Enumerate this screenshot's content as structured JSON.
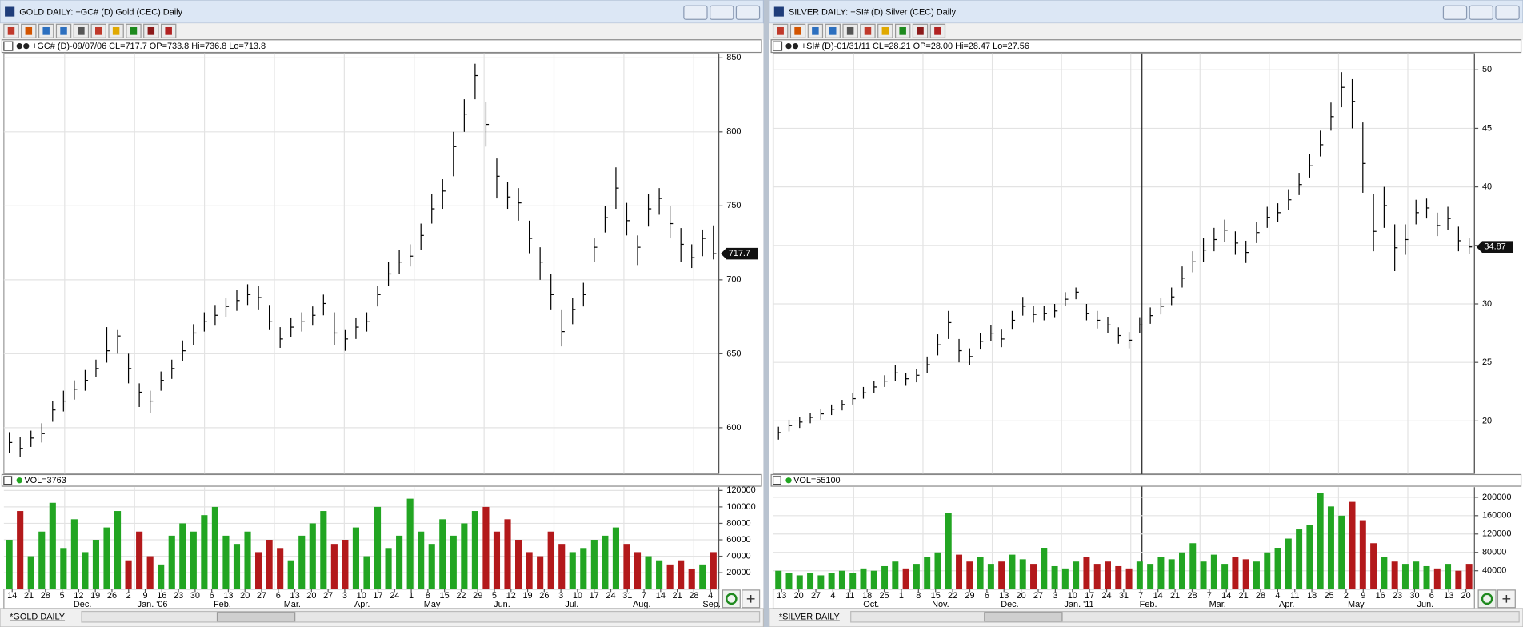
{
  "chart_data": [
    {
      "type": "ohlc",
      "window_title": "GOLD DAILY: +GC# (D) Gold (CEC) Daily",
      "header": "+GC# (D)-09/07/06 CL=717.7 OP=733.8 Hi=736.8 Lo=713.8",
      "volume_label": "VOL=3763",
      "tab": "*GOLD DAILY",
      "bar_color": "#000000",
      "up_color": "#22a522",
      "down_color": "#b3191b",
      "ylim": [
        569,
        853
      ],
      "yticks": [
        600,
        650,
        700,
        750,
        800,
        850
      ],
      "volume_ylim": [
        0,
        124000
      ],
      "volume_yticks": [
        20000,
        40000,
        60000,
        80000,
        100000,
        120000
      ],
      "grid": true,
      "close": [
        590,
        586,
        593,
        596,
        612,
        618,
        626,
        632,
        640,
        652,
        662,
        640,
        624,
        618,
        632,
        640,
        652,
        664,
        672,
        676,
        682,
        686,
        690,
        688,
        672,
        660,
        668,
        672,
        676,
        684,
        664,
        660,
        668,
        672,
        690,
        704,
        712,
        716,
        730,
        748,
        760,
        790,
        812,
        838,
        805,
        770,
        756,
        752,
        728,
        712,
        690,
        665,
        680,
        690,
        722,
        742,
        762,
        740,
        722,
        748,
        755,
        738,
        724,
        715,
        728,
        717.7
      ],
      "high": [
        597,
        594,
        598,
        603,
        618,
        625,
        632,
        639,
        646,
        668,
        666,
        650,
        630,
        625,
        638,
        646,
        659,
        670,
        678,
        683,
        688,
        693,
        697,
        696,
        683,
        668,
        674,
        678,
        682,
        690,
        678,
        666,
        674,
        678,
        696,
        712,
        720,
        724,
        738,
        758,
        768,
        800,
        822,
        846,
        820,
        782,
        766,
        762,
        740,
        722,
        704,
        680,
        688,
        698,
        728,
        750,
        776,
        752,
        730,
        758,
        762,
        750,
        735,
        724,
        734,
        736.8
      ],
      "low": [
        583,
        580,
        587,
        590,
        604,
        611,
        619,
        625,
        634,
        644,
        650,
        630,
        614,
        610,
        625,
        633,
        645,
        656,
        665,
        669,
        675,
        679,
        683,
        680,
        666,
        654,
        661,
        665,
        669,
        676,
        656,
        652,
        660,
        665,
        682,
        696,
        704,
        709,
        720,
        738,
        748,
        770,
        800,
        822,
        790,
        755,
        748,
        740,
        718,
        700,
        680,
        655,
        670,
        682,
        712,
        732,
        748,
        730,
        710,
        736,
        744,
        728,
        712,
        708,
        716,
        713.8
      ],
      "volume": [
        60000,
        95000,
        40000,
        70000,
        105000,
        50000,
        85000,
        45000,
        60000,
        75000,
        95000,
        35000,
        70000,
        40000,
        30000,
        65000,
        80000,
        70000,
        90000,
        100000,
        65000,
        55000,
        70000,
        45000,
        60000,
        50000,
        35000,
        65000,
        80000,
        95000,
        55000,
        60000,
        75000,
        40000,
        100000,
        50000,
        65000,
        110000,
        70000,
        55000,
        85000,
        65000,
        80000,
        95000,
        100000,
        70000,
        85000,
        60000,
        45000,
        40000,
        70000,
        55000,
        45000,
        50000,
        60000,
        65000,
        75000,
        55000,
        45000,
        40000,
        35000,
        30000,
        35000,
        25000,
        30000,
        45000
      ],
      "day_labels": [
        "14",
        "21",
        "28",
        "5",
        "12",
        "19",
        "26",
        "2",
        "9",
        "16",
        "23",
        "30",
        "6",
        "13",
        "20",
        "27",
        "6",
        "13",
        "20",
        "27",
        "3",
        "10",
        "17",
        "24",
        "1",
        "8",
        "15",
        "22",
        "29",
        "5",
        "12",
        "19",
        "26",
        "3",
        "10",
        "17",
        "24",
        "31",
        "7",
        "14",
        "21",
        "28",
        "4"
      ],
      "month_labels": [
        "Dec.",
        "Jan. '06",
        "Feb.",
        "Mar.",
        "Apr.",
        "May",
        "Jun.",
        "Jul.",
        "Aug.",
        "Sep."
      ]
    },
    {
      "type": "ohlc",
      "window_title": "SILVER DAILY: +SI# (D) Silver (CEC) Daily",
      "header": "+SI# (D)-01/31/11 CL=28.21 OP=28.00 Hi=28.47 Lo=27.56",
      "volume_label": "VOL=55100",
      "tab": "*SILVER DAILY",
      "bar_color": "#000000",
      "up_color": "#22a522",
      "down_color": "#b3191b",
      "ylim": [
        15.5,
        51.4
      ],
      "yticks": [
        20,
        25,
        30,
        35,
        40,
        45,
        50
      ],
      "volume_ylim": [
        0,
        222000
      ],
      "volume_yticks": [
        40000,
        80000,
        120000,
        160000,
        200000
      ],
      "grid": true,
      "close": [
        19.0,
        19.6,
        19.9,
        20.3,
        20.6,
        21.0,
        21.4,
        21.9,
        22.4,
        22.9,
        23.4,
        24.1,
        23.6,
        23.9,
        24.8,
        26.5,
        28.4,
        26.0,
        25.5,
        26.8,
        27.5,
        27.0,
        28.6,
        29.8,
        29.1,
        29.2,
        29.4,
        30.4,
        31.0,
        29.2,
        28.6,
        28.2,
        27.3,
        26.9,
        28.2,
        29.0,
        29.8,
        30.6,
        32.2,
        33.6,
        34.6,
        35.5,
        36.3,
        35.2,
        34.4,
        36.1,
        37.4,
        37.8,
        38.9,
        40.2,
        41.8,
        43.6,
        46.0,
        48.5,
        47.3,
        42.0,
        36.2,
        38.4,
        34.8,
        35.5,
        37.8,
        38.2,
        36.7,
        37.3,
        35.4,
        34.87
      ],
      "high": [
        19.5,
        20.1,
        20.3,
        20.7,
        21.0,
        21.4,
        21.8,
        22.4,
        22.9,
        23.4,
        23.9,
        24.8,
        24.1,
        24.4,
        25.5,
        27.4,
        29.4,
        27.0,
        26.2,
        27.5,
        28.2,
        27.8,
        29.4,
        30.6,
        29.8,
        29.8,
        30.0,
        31.0,
        31.4,
        30.0,
        29.4,
        28.9,
        28.0,
        27.6,
        28.8,
        29.7,
        30.5,
        31.4,
        33.2,
        34.5,
        35.6,
        36.5,
        37.2,
        36.2,
        35.4,
        37.0,
        38.3,
        38.6,
        39.8,
        41.2,
        42.8,
        44.8,
        47.2,
        49.8,
        49.2,
        45.5,
        39.4,
        40.0,
        36.8,
        36.8,
        38.9,
        39.0,
        37.8,
        38.3,
        36.6,
        35.6
      ],
      "low": [
        18.4,
        19.1,
        19.4,
        19.8,
        20.1,
        20.5,
        20.9,
        21.4,
        21.9,
        22.4,
        22.9,
        23.4,
        23.0,
        23.3,
        24.1,
        25.6,
        27.0,
        25.0,
        24.8,
        26.1,
        26.8,
        26.3,
        27.8,
        29.0,
        28.4,
        28.6,
        28.8,
        29.8,
        30.4,
        28.6,
        27.9,
        27.5,
        26.6,
        26.2,
        27.5,
        28.3,
        29.1,
        29.9,
        31.4,
        32.7,
        33.6,
        34.5,
        35.3,
        34.2,
        33.5,
        35.2,
        36.5,
        37.0,
        38.0,
        39.3,
        40.8,
        42.6,
        44.8,
        46.8,
        45.0,
        39.5,
        34.5,
        36.5,
        32.8,
        34.2,
        36.8,
        37.3,
        35.8,
        36.3,
        34.5,
        34.3
      ],
      "volume": [
        40000,
        35000,
        30000,
        35000,
        30000,
        35000,
        40000,
        35000,
        45000,
        40000,
        50000,
        60000,
        45000,
        55000,
        70000,
        80000,
        165000,
        75000,
        60000,
        70000,
        55000,
        60000,
        75000,
        65000,
        55000,
        90000,
        50000,
        45000,
        60000,
        70000,
        55000,
        60000,
        50000,
        45000,
        60000,
        55000,
        70000,
        65000,
        80000,
        100000,
        60000,
        75000,
        55000,
        70000,
        65000,
        60000,
        80000,
        90000,
        110000,
        130000,
        140000,
        210000,
        180000,
        160000,
        190000,
        150000,
        100000,
        70000,
        60000,
        55000,
        60000,
        50000,
        45000,
        55000,
        40000,
        55000
      ],
      "day_labels": [
        "13",
        "20",
        "27",
        "4",
        "11",
        "18",
        "25",
        "1",
        "8",
        "15",
        "22",
        "29",
        "6",
        "13",
        "20",
        "27",
        "3",
        "10",
        "17",
        "24",
        "31",
        "7",
        "14",
        "21",
        "28",
        "7",
        "14",
        "21",
        "28",
        "4",
        "11",
        "18",
        "25",
        "2",
        "9",
        "16",
        "23",
        "30",
        "6",
        "13",
        "20"
      ],
      "month_labels": [
        "Oct.",
        "Nov.",
        "Dec.",
        "Jan. '11",
        "Feb.",
        "Mar.",
        "Apr.",
        "May",
        "Jun."
      ]
    }
  ]
}
